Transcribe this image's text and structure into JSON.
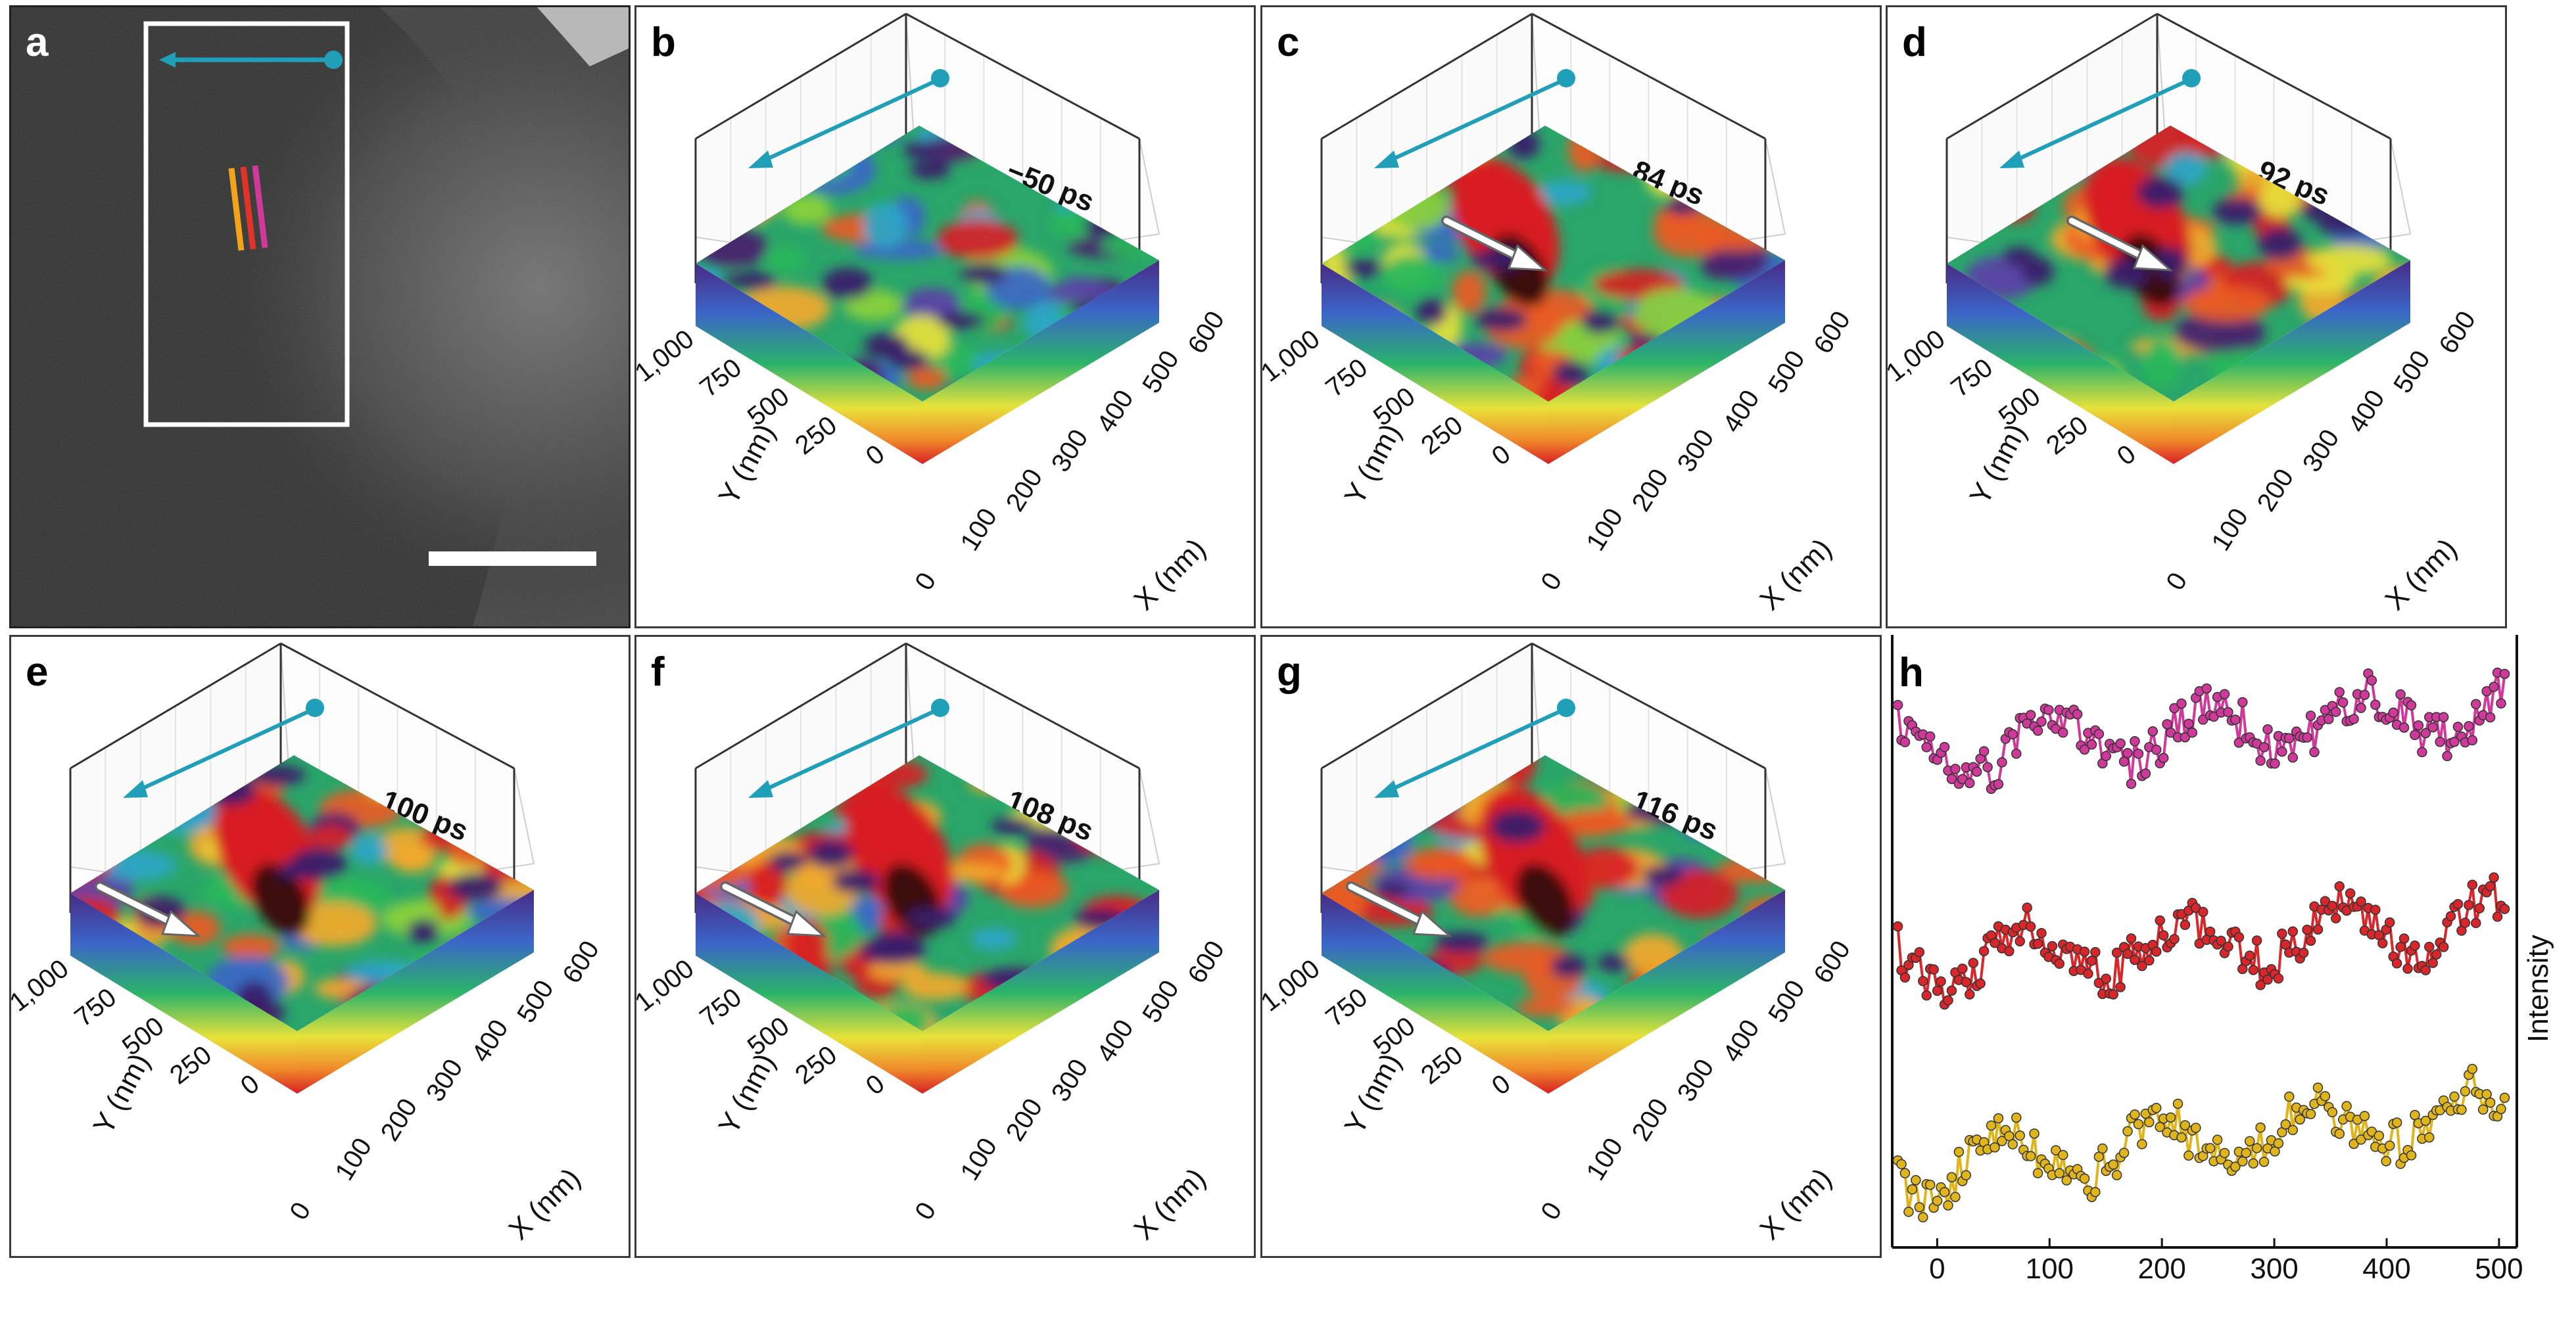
{
  "panel_a": {
    "label": "a",
    "line_colors": [
      "#f2a31c",
      "#e0332a",
      "#cf3a9a"
    ],
    "arrow_color": "#1f9fb8"
  },
  "surface_panels": [
    {
      "label": "b",
      "time": "−50 ps",
      "show_arrow": false
    },
    {
      "label": "c",
      "time": "84 ps",
      "show_arrow": true
    },
    {
      "label": "d",
      "time": "92 ps",
      "show_arrow": true
    },
    {
      "label": "e",
      "time": "100 ps",
      "show_arrow": true
    },
    {
      "label": "f",
      "time": "108 ps",
      "show_arrow": true
    },
    {
      "label": "g",
      "time": "116 ps",
      "show_arrow": true
    }
  ],
  "surface_axes": {
    "y_ticks": [
      "1,000",
      "750",
      "500",
      "250",
      "0"
    ],
    "x_ticks": [
      "0",
      "100",
      "200",
      "300",
      "400",
      "500",
      "600"
    ],
    "y_title": "Y (nm)",
    "x_title": "X (nm)"
  },
  "chart_data": {
    "type": "line",
    "label": "h",
    "ylabel": "Intensity",
    "xlabel": "",
    "x_ticks": [
      0,
      100,
      200,
      300,
      400,
      500
    ],
    "xlim": [
      -40,
      510
    ],
    "series": [
      {
        "name": "magenta profile",
        "color": "#cf3a9a"
      },
      {
        "name": "red profile",
        "color": "#d8262b"
      },
      {
        "name": "yellow profile",
        "color": "#e0b51c"
      }
    ]
  }
}
